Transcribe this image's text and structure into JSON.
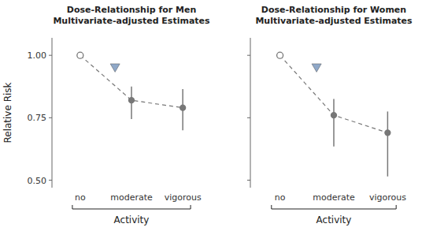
{
  "chart_data": [
    {
      "type": "line",
      "title": "Dose-Relationship for Men",
      "subtitle": "Multivariate-adjusted Estimates",
      "categories": [
        "no",
        "moderate",
        "vigorous"
      ],
      "values": [
        1.0,
        0.82,
        0.79
      ],
      "error_low": [
        0.0,
        0.075,
        0.09
      ],
      "error_high": [
        0.0,
        0.055,
        0.075
      ],
      "color": "#777777",
      "line_style": "dashed",
      "marker": "circle",
      "xlabel": "Activity",
      "ylabel": "Relative Risk",
      "ylim": [
        0.47,
        1.07
      ],
      "yticks": [
        {
          "value": 0.5,
          "label": "0.50"
        },
        {
          "value": 0.75,
          "label": "0.75"
        },
        {
          "value": 1.0,
          "label": "1.00"
        }
      ],
      "annotations": [
        {
          "x": 0.68,
          "y": 0.955,
          "marker": "triangle-down",
          "color": "#8fa8c8"
        }
      ]
    },
    {
      "type": "line",
      "title": "Dose-Relationship for Women",
      "subtitle": "Multivariate-adjusted Estimates",
      "categories": [
        "no",
        "moderate",
        "vigorous"
      ],
      "values": [
        1.0,
        0.76,
        0.69
      ],
      "error_low": [
        0.0,
        0.125,
        0.175
      ],
      "error_high": [
        0.0,
        0.065,
        0.085
      ],
      "color": "#777777",
      "line_style": "dashed",
      "marker": "circle",
      "xlabel": "Activity",
      "ylim": [
        0.47,
        1.07
      ],
      "yticks": [
        {
          "value": 0.5,
          "label": "0.50"
        },
        {
          "value": 0.75,
          "label": "0.75"
        },
        {
          "value": 1.0,
          "label": "1.00"
        }
      ],
      "tick_labels": "x",
      "annotations": [
        {
          "x": 0.68,
          "y": 0.955,
          "marker": "triangle-down",
          "color": "#8fa8c8"
        }
      ]
    }
  ]
}
